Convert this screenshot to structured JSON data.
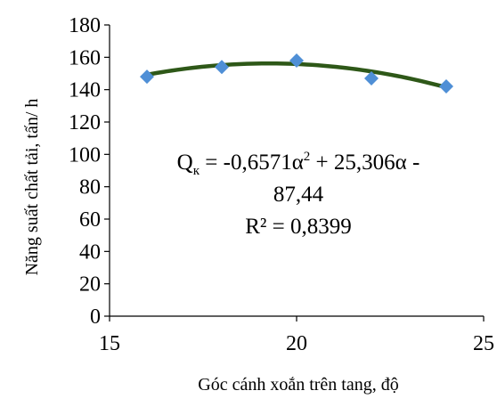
{
  "chart_data": {
    "type": "scatter",
    "title": "",
    "xlabel": "Góc cánh xoắn trên tang, độ",
    "ylabel": "Năng suất chất tải, tấn/ h",
    "xlim": [
      15,
      25
    ],
    "ylim": [
      0,
      180
    ],
    "xticks": [
      15,
      20,
      25
    ],
    "yticks": [
      0,
      20,
      40,
      60,
      80,
      100,
      120,
      140,
      160,
      180
    ],
    "grid": false,
    "legend": "none",
    "series": [
      {
        "marker": "diamond",
        "x": [
          16,
          18,
          20,
          22,
          24
        ],
        "y": [
          148,
          154,
          158,
          147,
          142
        ]
      }
    ],
    "trendline": {
      "type": "polynomial",
      "order": 2,
      "coefficients": [
        -0.6571,
        25.306,
        -87.44
      ],
      "x_range": [
        16,
        24
      ]
    },
    "annotation": {
      "equation_var": "Q",
      "equation_sub": "к",
      "equation_rest": " = -0,6571α",
      "equation_exp": "2",
      "equation_tail": " + 25,306α -",
      "equation_line2": "87,44",
      "r_squared": "R² = 0,8399"
    },
    "colors": {
      "marker": "#4F8FD6",
      "trendline": "#2E5818",
      "axis": "#000000"
    }
  }
}
